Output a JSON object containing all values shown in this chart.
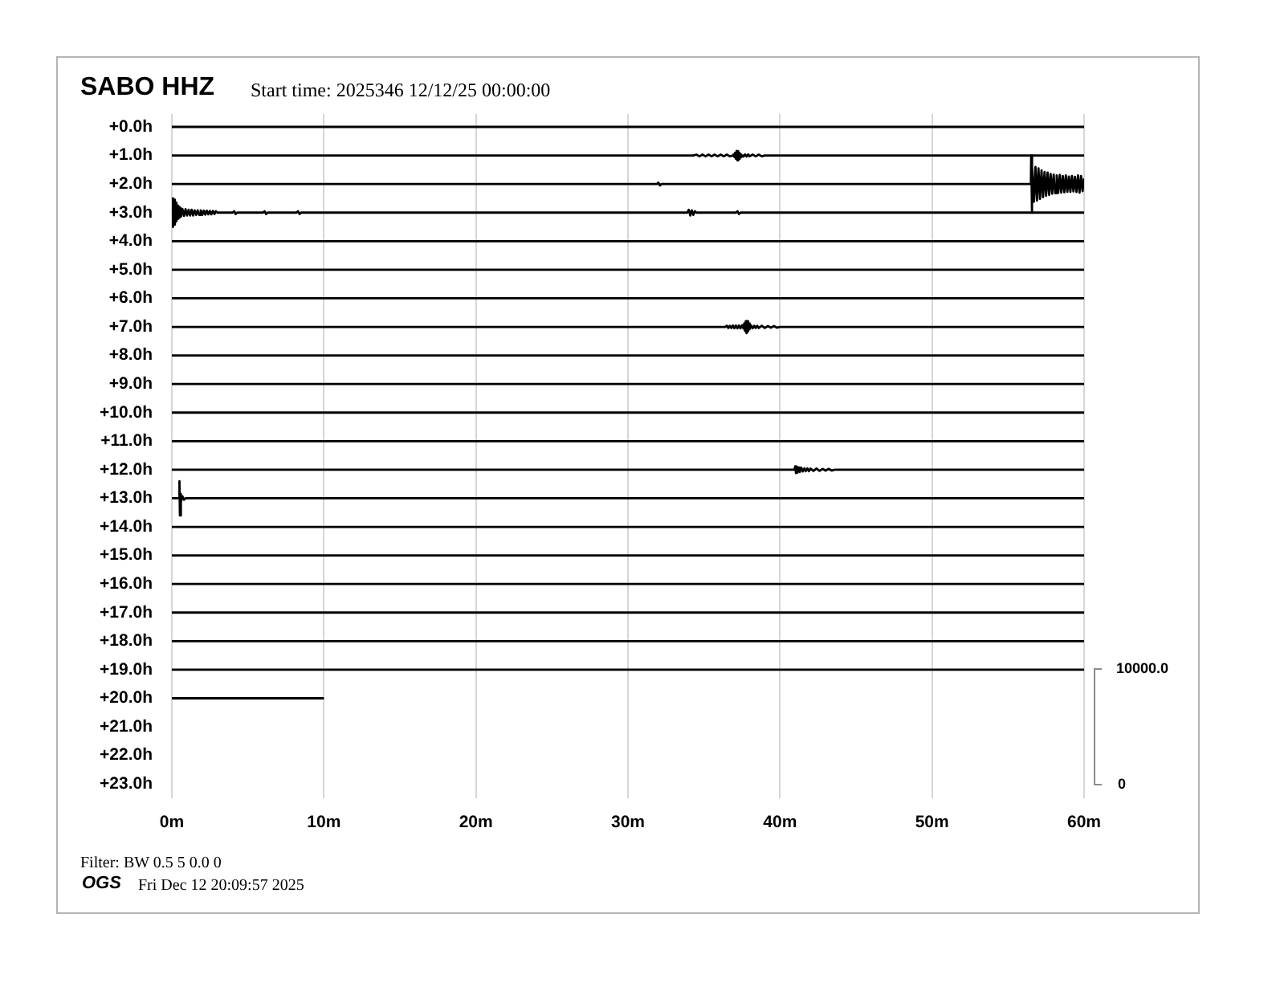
{
  "chart_data": {
    "type": "line",
    "title": "SABO HHZ",
    "subtitle": "Start time: 2025346 12/12/25 00:00:00",
    "annotations": [
      "Filter: BW 0.5 5 0.0 0",
      "OGS",
      "Fri Dec 12 20:09:57 2025",
      "10000.0",
      "0"
    ],
    "xlim": [
      0,
      60
    ],
    "xticks": [
      {
        "value": 0,
        "label": "0m"
      },
      {
        "value": 10,
        "label": "10m"
      },
      {
        "value": 20,
        "label": "20m"
      },
      {
        "value": 30,
        "label": "30m"
      },
      {
        "value": 40,
        "label": "40m"
      },
      {
        "value": 50,
        "label": "50m"
      },
      {
        "value": 60,
        "label": "60m"
      }
    ],
    "ylim": [
      23.5,
      -0.45
    ],
    "yticks": [
      {
        "value": 0,
        "label": "+0.0h"
      },
      {
        "value": 1,
        "label": "+1.0h"
      },
      {
        "value": 2,
        "label": "+2.0h"
      },
      {
        "value": 3,
        "label": "+3.0h"
      },
      {
        "value": 4,
        "label": "+4.0h"
      },
      {
        "value": 5,
        "label": "+5.0h"
      },
      {
        "value": 6,
        "label": "+6.0h"
      },
      {
        "value": 7,
        "label": "+7.0h"
      },
      {
        "value": 8,
        "label": "+8.0h"
      },
      {
        "value": 9,
        "label": "+9.0h"
      },
      {
        "value": 10,
        "label": "+10.0h"
      },
      {
        "value": 11,
        "label": "+11.0h"
      },
      {
        "value": 12,
        "label": "+12.0h"
      },
      {
        "value": 13,
        "label": "+13.0h"
      },
      {
        "value": 14,
        "label": "+14.0h"
      },
      {
        "value": 15,
        "label": "+15.0h"
      },
      {
        "value": 16,
        "label": "+16.0h"
      },
      {
        "value": 17,
        "label": "+17.0h"
      },
      {
        "value": 18,
        "label": "+18.0h"
      },
      {
        "value": 19,
        "label": "+19.0h"
      },
      {
        "value": 20,
        "label": "+20.0h"
      },
      {
        "value": 21,
        "label": "+21.0h"
      },
      {
        "value": 22,
        "label": "+22.0h"
      },
      {
        "value": 23,
        "label": "+23.0h"
      }
    ],
    "grid": "x",
    "series": [
      {
        "color": "#000000",
        "x": [
          0,
          60
        ],
        "values": [
          0,
          0
        ]
      },
      {
        "color": "#000000",
        "x": [
          0,
          34.3,
          34.5,
          34.7,
          34.9,
          35.1,
          35.3,
          35.5,
          35.7,
          35.9,
          36.1,
          36.3,
          36.5,
          36.7,
          36.9,
          36.95,
          37.0,
          37.05,
          37.1,
          37.15,
          37.2,
          37.25,
          37.3,
          37.35,
          37.4,
          37.45,
          37.5,
          37.6,
          37.7,
          37.8,
          37.9,
          38.0,
          38.2,
          38.4,
          38.6,
          38.8,
          39.0,
          60
        ],
        "values": [
          1,
          1,
          0.97,
          1.03,
          0.97,
          1.03,
          0.97,
          1.03,
          0.97,
          1.03,
          0.97,
          1.03,
          0.97,
          1.03,
          1,
          0.96,
          1.06,
          0.9,
          1.12,
          0.84,
          1.17,
          0.85,
          1.12,
          0.92,
          1.06,
          0.97,
          1,
          1.04,
          0.96,
          1.04,
          0.96,
          1.03,
          0.97,
          1.03,
          0.97,
          1.03,
          1,
          1
        ]
      },
      {
        "color": "#000000",
        "x": [
          0,
          31.9,
          32.0,
          32.1,
          32.2,
          56.5,
          56.52,
          56.55,
          56.6,
          56.7,
          56.8,
          56.9,
          57.0,
          57.1,
          57.2,
          57.3,
          57.4,
          57.5,
          57.6,
          57.7,
          57.8,
          57.9,
          58.0,
          58.1,
          58.2,
          58.3,
          58.4,
          58.5,
          58.6,
          58.7,
          58.8,
          58.9,
          59.0,
          59.1,
          59.2,
          59.3,
          59.4,
          59.5,
          59.6,
          59.7,
          59.8,
          59.9,
          60
        ],
        "values": [
          2,
          2,
          1.95,
          2.05,
          2,
          2,
          1.0,
          3.0,
          1.38,
          2.62,
          1.4,
          2.58,
          1.45,
          2.52,
          1.52,
          2.46,
          1.58,
          2.41,
          1.6,
          2.38,
          1.65,
          2.34,
          1.67,
          2.32,
          1.7,
          2.31,
          1.68,
          2.3,
          1.72,
          2.29,
          1.7,
          2.27,
          1.74,
          2.27,
          1.72,
          2.26,
          1.75,
          2.28,
          1.7,
          2.3,
          1.72,
          2.25,
          1.8
        ]
      },
      {
        "color": "#000000",
        "x": [
          0,
          0.05,
          0.1,
          0.15,
          0.2,
          0.25,
          0.3,
          0.35,
          0.4,
          0.45,
          0.5,
          0.55,
          0.6,
          0.7,
          0.8,
          0.9,
          1.0,
          1.1,
          1.2,
          1.3,
          1.4,
          1.5,
          1.6,
          1.7,
          1.8,
          1.9,
          2.0,
          2.1,
          2.2,
          2.3,
          2.4,
          2.5,
          2.6,
          2.7,
          2.8,
          2.9,
          3.0,
          4.0,
          4.1,
          4.2,
          4.3,
          6.0,
          6.1,
          6.2,
          6.3,
          8.2,
          8.3,
          8.4,
          8.5,
          33.9,
          34.0,
          34.1,
          34.2,
          34.3,
          34.4,
          34.5,
          37.1,
          37.2,
          37.3,
          37.4,
          60
        ],
        "values": [
          3,
          2.5,
          3.5,
          2.55,
          3.42,
          2.65,
          3.3,
          2.75,
          3.22,
          2.8,
          3.18,
          2.85,
          3.14,
          2.88,
          3.12,
          2.88,
          3.1,
          2.9,
          3.1,
          2.9,
          3.1,
          2.92,
          3.08,
          2.92,
          3.08,
          2.92,
          3.08,
          2.93,
          3.07,
          2.93,
          3.06,
          2.94,
          3.06,
          2.94,
          3.05,
          2.95,
          3,
          3,
          2.95,
          3.05,
          3,
          3,
          2.95,
          3.05,
          3,
          3,
          2.95,
          3.05,
          3,
          3,
          2.9,
          3.1,
          2.92,
          3.08,
          2.95,
          3,
          3,
          2.95,
          3.05,
          3,
          3
        ]
      },
      {
        "color": "#000000",
        "x": [
          0,
          60
        ],
        "values": [
          4,
          4
        ]
      },
      {
        "color": "#000000",
        "x": [
          0,
          60
        ],
        "values": [
          5,
          5
        ]
      },
      {
        "color": "#000000",
        "x": [
          0,
          60
        ],
        "values": [
          6,
          6
        ]
      },
      {
        "color": "#000000",
        "x": [
          0,
          36.4,
          36.5,
          36.6,
          36.7,
          36.8,
          36.9,
          37.0,
          37.1,
          37.2,
          37.3,
          37.4,
          37.5,
          37.6,
          37.65,
          37.7,
          37.75,
          37.8,
          37.85,
          37.9,
          37.95,
          38.0,
          38.1,
          38.2,
          38.3,
          38.4,
          38.5,
          38.6,
          38.8,
          39.0,
          39.2,
          39.4,
          39.6,
          39.8,
          40.0,
          60
        ],
        "values": [
          7,
          7,
          6.96,
          7.04,
          6.96,
          7.04,
          6.95,
          7.05,
          6.95,
          7.05,
          6.95,
          7.05,
          6.94,
          7.06,
          6.88,
          7.14,
          6.8,
          7.22,
          6.8,
          7.16,
          6.88,
          7.08,
          6.95,
          7.05,
          6.96,
          7.04,
          6.96,
          7.04,
          6.96,
          7.04,
          6.97,
          7.03,
          6.97,
          7.03,
          7,
          7
        ]
      },
      {
        "color": "#000000",
        "x": [
          0,
          60
        ],
        "values": [
          8,
          8
        ]
      },
      {
        "color": "#000000",
        "x": [
          0,
          60
        ],
        "values": [
          9,
          9
        ]
      },
      {
        "color": "#000000",
        "x": [
          0,
          60
        ],
        "values": [
          10,
          10
        ]
      },
      {
        "color": "#000000",
        "x": [
          0,
          60
        ],
        "values": [
          11,
          11
        ]
      },
      {
        "color": "#000000",
        "x": [
          0,
          40.95,
          41.0,
          41.05,
          41.1,
          41.15,
          41.2,
          41.3,
          41.4,
          41.5,
          41.6,
          41.7,
          41.8,
          41.9,
          42.0,
          42.2,
          42.4,
          42.6,
          42.8,
          43.0,
          43.2,
          43.4,
          43.6,
          60
        ],
        "values": [
          12,
          12,
          11.88,
          12.12,
          11.9,
          12.1,
          11.92,
          12.08,
          11.93,
          12.06,
          11.95,
          12.05,
          11.95,
          12.05,
          11.96,
          12.04,
          11.96,
          12.04,
          11.97,
          12.03,
          11.97,
          12.03,
          12,
          12
        ]
      },
      {
        "color": "#000000",
        "x": [
          0,
          0.45,
          0.5,
          0.53,
          0.57,
          0.62,
          0.7,
          0.8,
          0.9,
          60
        ],
        "values": [
          13,
          13,
          12.4,
          13.6,
          12.85,
          13.12,
          12.93,
          13.05,
          13,
          13
        ]
      },
      {
        "color": "#000000",
        "x": [
          0,
          60
        ],
        "values": [
          14,
          14
        ]
      },
      {
        "color": "#000000",
        "x": [
          0,
          60
        ],
        "values": [
          15,
          15
        ]
      },
      {
        "color": "#000000",
        "x": [
          0,
          60
        ],
        "values": [
          16,
          16
        ]
      },
      {
        "color": "#000000",
        "x": [
          0,
          60
        ],
        "values": [
          17,
          17
        ]
      },
      {
        "color": "#000000",
        "x": [
          0,
          60
        ],
        "values": [
          18,
          18
        ]
      },
      {
        "color": "#000000",
        "x": [
          0,
          60
        ],
        "values": [
          19,
          19
        ]
      },
      {
        "color": "#000000",
        "x": [
          0,
          10
        ],
        "values": [
          20,
          20
        ]
      }
    ]
  }
}
